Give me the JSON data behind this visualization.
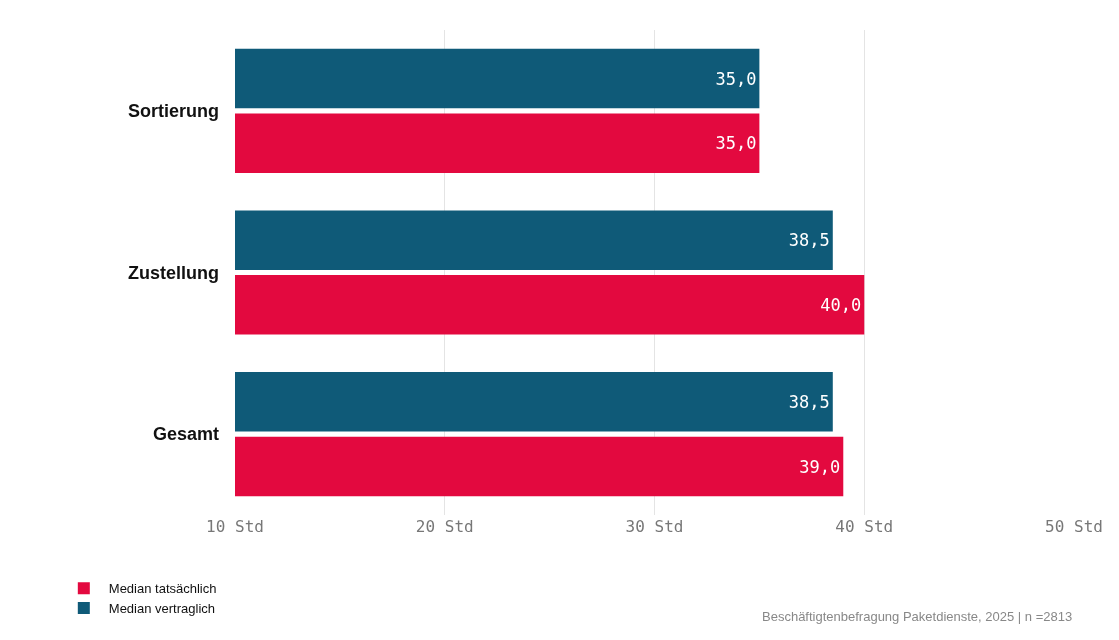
{
  "chart_data": {
    "type": "bar",
    "orientation": "horizontal",
    "categories": [
      "Sortierung",
      "Zustellung",
      "Gesamt"
    ],
    "series": [
      {
        "name": "Median tatsächlich",
        "color": "#e3093f",
        "values": [
          35.0,
          40.0,
          39.0
        ],
        "value_labels": [
          "35,0",
          "40,0",
          "39,0"
        ]
      },
      {
        "name": "Median vertraglich",
        "color": "#0f5a78",
        "values": [
          35.0,
          38.5,
          38.5
        ],
        "value_labels": [
          "35,0",
          "38,5",
          "38,5"
        ]
      }
    ],
    "xlim": [
      10,
      50
    ],
    "xticks": [
      {
        "value": 10,
        "label": "10 Std"
      },
      {
        "value": 20,
        "label": "20 Std"
      },
      {
        "value": 30,
        "label": "30 Std"
      },
      {
        "value": 40,
        "label": "40 Std"
      },
      {
        "value": 50,
        "label": "50 Std"
      }
    ],
    "grid": "x",
    "legend": "bottom left",
    "annotations": [
      "Beschäftigtenbefragung Paketdienste, 2025 | n =2813"
    ]
  }
}
